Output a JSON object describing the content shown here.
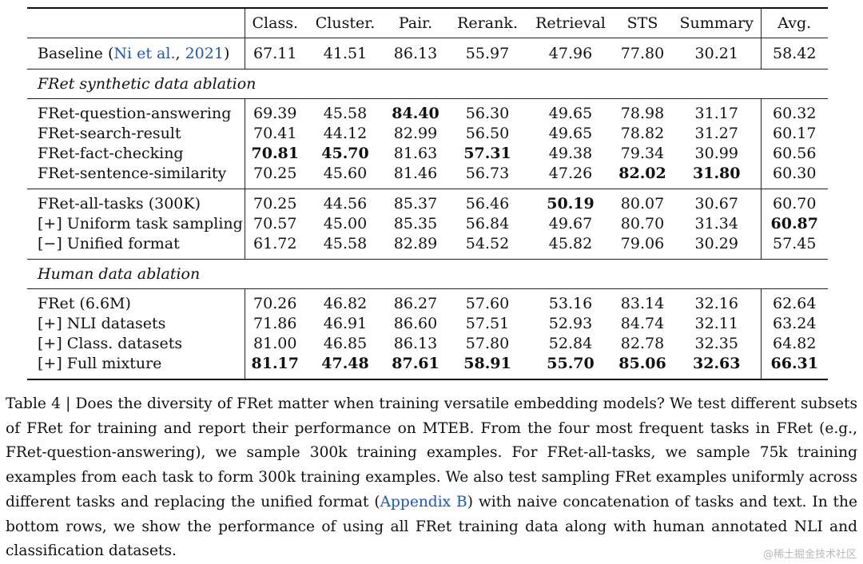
{
  "table": {
    "columns": [
      "Class.",
      "Cluster.",
      "Pair.",
      "Rerank.",
      "Retrieval",
      "STS",
      "Summary",
      "Avg."
    ],
    "baseline": {
      "label_prefix": "Baseline (",
      "cite_author": "Ni et al.",
      "cite_sep": ", ",
      "cite_year": "2021",
      "label_suffix": ")",
      "values": [
        "67.11",
        "41.51",
        "86.13",
        "55.97",
        "47.96",
        "77.80",
        "30.21",
        "58.42"
      ]
    },
    "section1": {
      "title": "FRet synthetic data ablation",
      "rows": [
        {
          "label": "FRet-question-answering",
          "values": [
            "69.39",
            "45.58",
            "84.40",
            "56.30",
            "49.65",
            "78.98",
            "31.17",
            "60.32"
          ]
        },
        {
          "label": "FRet-search-result",
          "values": [
            "70.41",
            "44.12",
            "82.99",
            "56.50",
            "49.65",
            "78.82",
            "31.27",
            "60.17"
          ]
        },
        {
          "label": "FRet-fact-checking",
          "values": [
            "70.81",
            "45.70",
            "81.63",
            "57.31",
            "49.38",
            "79.34",
            "30.99",
            "60.56"
          ]
        },
        {
          "label": "FRet-sentence-similarity",
          "values": [
            "70.25",
            "45.60",
            "81.46",
            "56.73",
            "47.26",
            "82.02",
            "31.80",
            "60.30"
          ]
        }
      ],
      "rows2": [
        {
          "label": "FRet-all-tasks (300K)",
          "values": [
            "70.25",
            "44.56",
            "85.37",
            "56.46",
            "50.19",
            "80.07",
            "30.67",
            "60.70"
          ]
        },
        {
          "label": "[+] Uniform task sampling",
          "values": [
            "70.57",
            "45.00",
            "85.35",
            "56.84",
            "49.67",
            "80.70",
            "31.34",
            "60.87"
          ]
        },
        {
          "label": "[−] Unified format",
          "values": [
            "61.72",
            "45.58",
            "82.89",
            "54.52",
            "45.82",
            "79.06",
            "30.29",
            "57.45"
          ]
        }
      ]
    },
    "section2": {
      "title": "Human data ablation",
      "rows": [
        {
          "label": "FRet (6.6M)",
          "values": [
            "70.26",
            "46.82",
            "86.27",
            "57.60",
            "53.16",
            "83.14",
            "32.16",
            "62.64"
          ]
        },
        {
          "label": "[+] NLI datasets",
          "values": [
            "71.86",
            "46.91",
            "86.60",
            "57.51",
            "52.93",
            "84.74",
            "32.11",
            "63.24"
          ]
        },
        {
          "label": "[+] Class. datasets",
          "values": [
            "81.00",
            "46.85",
            "86.13",
            "57.80",
            "52.84",
            "82.78",
            "32.35",
            "64.82"
          ]
        },
        {
          "label": "[+] Full mixture",
          "values": [
            "81.17",
            "47.48",
            "87.61",
            "58.91",
            "55.70",
            "85.06",
            "32.63",
            "66.31"
          ]
        }
      ]
    }
  },
  "caption": {
    "text_before_link": "Table 4 | Does the diversity of FRet matter when training versatile embedding models? We test different subsets of FRet for training and report their performance on MTEB. From the four most frequent tasks in FRet (e.g., FRet-question-answering), we sample 300k training examples. For FRet-all-tasks, we sample 75k training examples from each task to form 300k training examples. We also test sampling FRet examples uniformly across different tasks and replacing the unified format (",
    "link_text": "Appendix B",
    "text_after_link": ") with naive concatenation of tasks and text. In the bottom rows, we show the performance of using all FRet training data along with human annotated NLI and classification datasets."
  },
  "watermark": "@稀土掘金技术社区"
}
